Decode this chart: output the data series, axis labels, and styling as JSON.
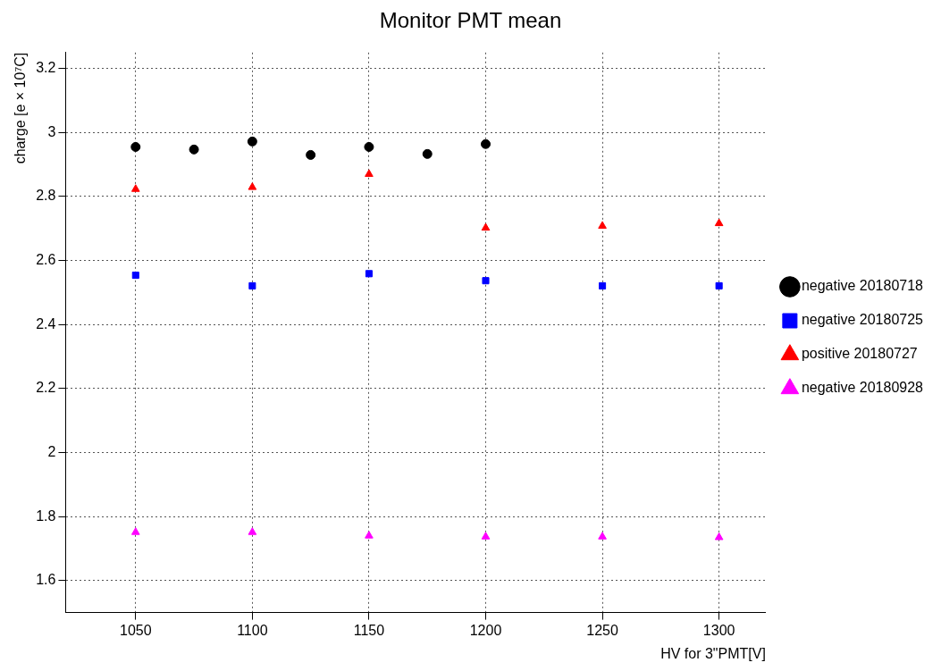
{
  "chart_data": {
    "type": "scatter",
    "title": "Monitor PMT mean",
    "xlabel": "HV for 3\"PMT[V]",
    "ylabel": "charge [e × 10⁷C]",
    "xlim": [
      1020,
      1320
    ],
    "xticks": [
      1050,
      1100,
      1150,
      1200,
      1250,
      1300
    ],
    "ylim": [
      1.5,
      3.25
    ],
    "yticks": [
      1.6,
      1.8,
      2,
      2.2,
      2.4,
      2.6,
      2.8,
      3,
      3.2
    ],
    "grid": true,
    "legend": "right",
    "series": [
      {
        "name": "negative 20180718",
        "color": "#000000",
        "marker": "circle",
        "x": [
          1050,
          1075,
          1100,
          1125,
          1150,
          1175,
          1200
        ],
        "values": [
          2.955,
          2.947,
          2.972,
          2.93,
          2.955,
          2.933,
          2.964
        ]
      },
      {
        "name": "negative 20180725",
        "color": "#0000ff",
        "marker": "square",
        "x": [
          1050,
          1100,
          1150,
          1200,
          1250,
          1300
        ],
        "values": [
          2.554,
          2.521,
          2.559,
          2.537,
          2.521,
          2.521
        ]
      },
      {
        "name": "positive 20180727",
        "color": "#ff0000",
        "marker": "triangle",
        "x": [
          1050,
          1100,
          1150,
          1200,
          1250,
          1300
        ],
        "values": [
          2.823,
          2.829,
          2.87,
          2.702,
          2.708,
          2.716
        ]
      },
      {
        "name": "negative 20180928",
        "color": "#ff00ff",
        "marker": "triangle",
        "x": [
          1050,
          1100,
          1150,
          1200,
          1250,
          1300
        ],
        "values": [
          1.751,
          1.751,
          1.74,
          1.737,
          1.737,
          1.735
        ]
      }
    ]
  }
}
